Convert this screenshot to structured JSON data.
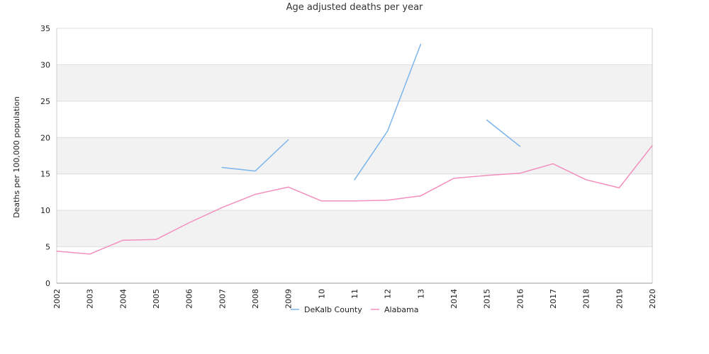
{
  "chart_data": {
    "type": "line",
    "title": "Age adjusted deaths per year",
    "xlabel": "",
    "ylabel": "Deaths per 100,000 population",
    "x": [
      "2002",
      "2003",
      "2004",
      "2005",
      "2006",
      "2007",
      "2008",
      "2009",
      "2010",
      "2011",
      "2012",
      "2013",
      "2014",
      "2015",
      "2016",
      "2017",
      "2018",
      "2019",
      "2020"
    ],
    "x_tick_labels": [
      "2002",
      "2003",
      "2004",
      "2005",
      "2006",
      "2007",
      "2008",
      "2009",
      "10",
      "11",
      "12",
      "13",
      "2014",
      "2015",
      "2016",
      "2017",
      "2018",
      "2019",
      "2020"
    ],
    "y_ticks": [
      0,
      5,
      10,
      15,
      20,
      25,
      30,
      35
    ],
    "ylim": [
      0,
      35
    ],
    "grid": "horizontal bands",
    "legend_position": "bottom",
    "colors": {
      "band": "#f2f2f2",
      "grid": "#dddddd",
      "axis": "#cccccc"
    },
    "series": [
      {
        "name": "DeKalb County",
        "color": "#7cb5ec",
        "values": [
          null,
          null,
          null,
          null,
          null,
          15.9,
          15.4,
          19.7,
          null,
          14.2,
          20.9,
          32.8,
          null,
          22.4,
          18.8,
          null,
          null,
          null,
          null
        ]
      },
      {
        "name": "Alabama",
        "color": "#f28fbd",
        "values": [
          4.4,
          4.0,
          5.9,
          6.0,
          8.3,
          10.4,
          12.2,
          13.2,
          11.3,
          11.3,
          11.4,
          12.0,
          14.4,
          14.8,
          15.1,
          16.4,
          14.2,
          13.1,
          18.9
        ]
      }
    ]
  }
}
